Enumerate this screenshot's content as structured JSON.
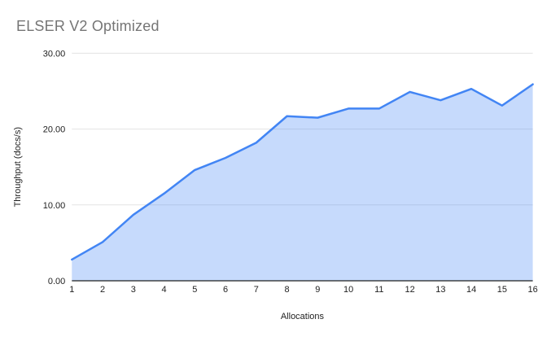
{
  "chart_data": {
    "type": "area",
    "title": "ELSER V2 Optimized",
    "xlabel": "Allocations",
    "ylabel": "Throughput (docs/s)",
    "categories": [
      "1",
      "2",
      "3",
      "4",
      "5",
      "6",
      "7",
      "8",
      "9",
      "10",
      "11",
      "12",
      "13",
      "14",
      "15",
      "16"
    ],
    "values": [
      2.8,
      5.1,
      8.7,
      11.5,
      14.6,
      16.2,
      18.2,
      21.7,
      21.5,
      22.7,
      22.7,
      24.9,
      23.8,
      25.3,
      23.1,
      25.9
    ],
    "ylim": [
      0,
      30
    ],
    "yticks": [
      {
        "value": 0,
        "label": "0.00"
      },
      {
        "value": 10,
        "label": "10.00"
      },
      {
        "value": 20,
        "label": "20.00"
      },
      {
        "value": 30,
        "label": "30.00"
      }
    ],
    "grid": true,
    "legend": "none",
    "colors": {
      "line": "#4285f4",
      "fill": "#4285f4",
      "fill_opacity": 0.3,
      "gridline": "#e3e3e3",
      "axis_line": "#212121",
      "title": "#757575",
      "tick_label": "#222222",
      "axis_label": "#222222",
      "background": "#ffffff"
    }
  }
}
